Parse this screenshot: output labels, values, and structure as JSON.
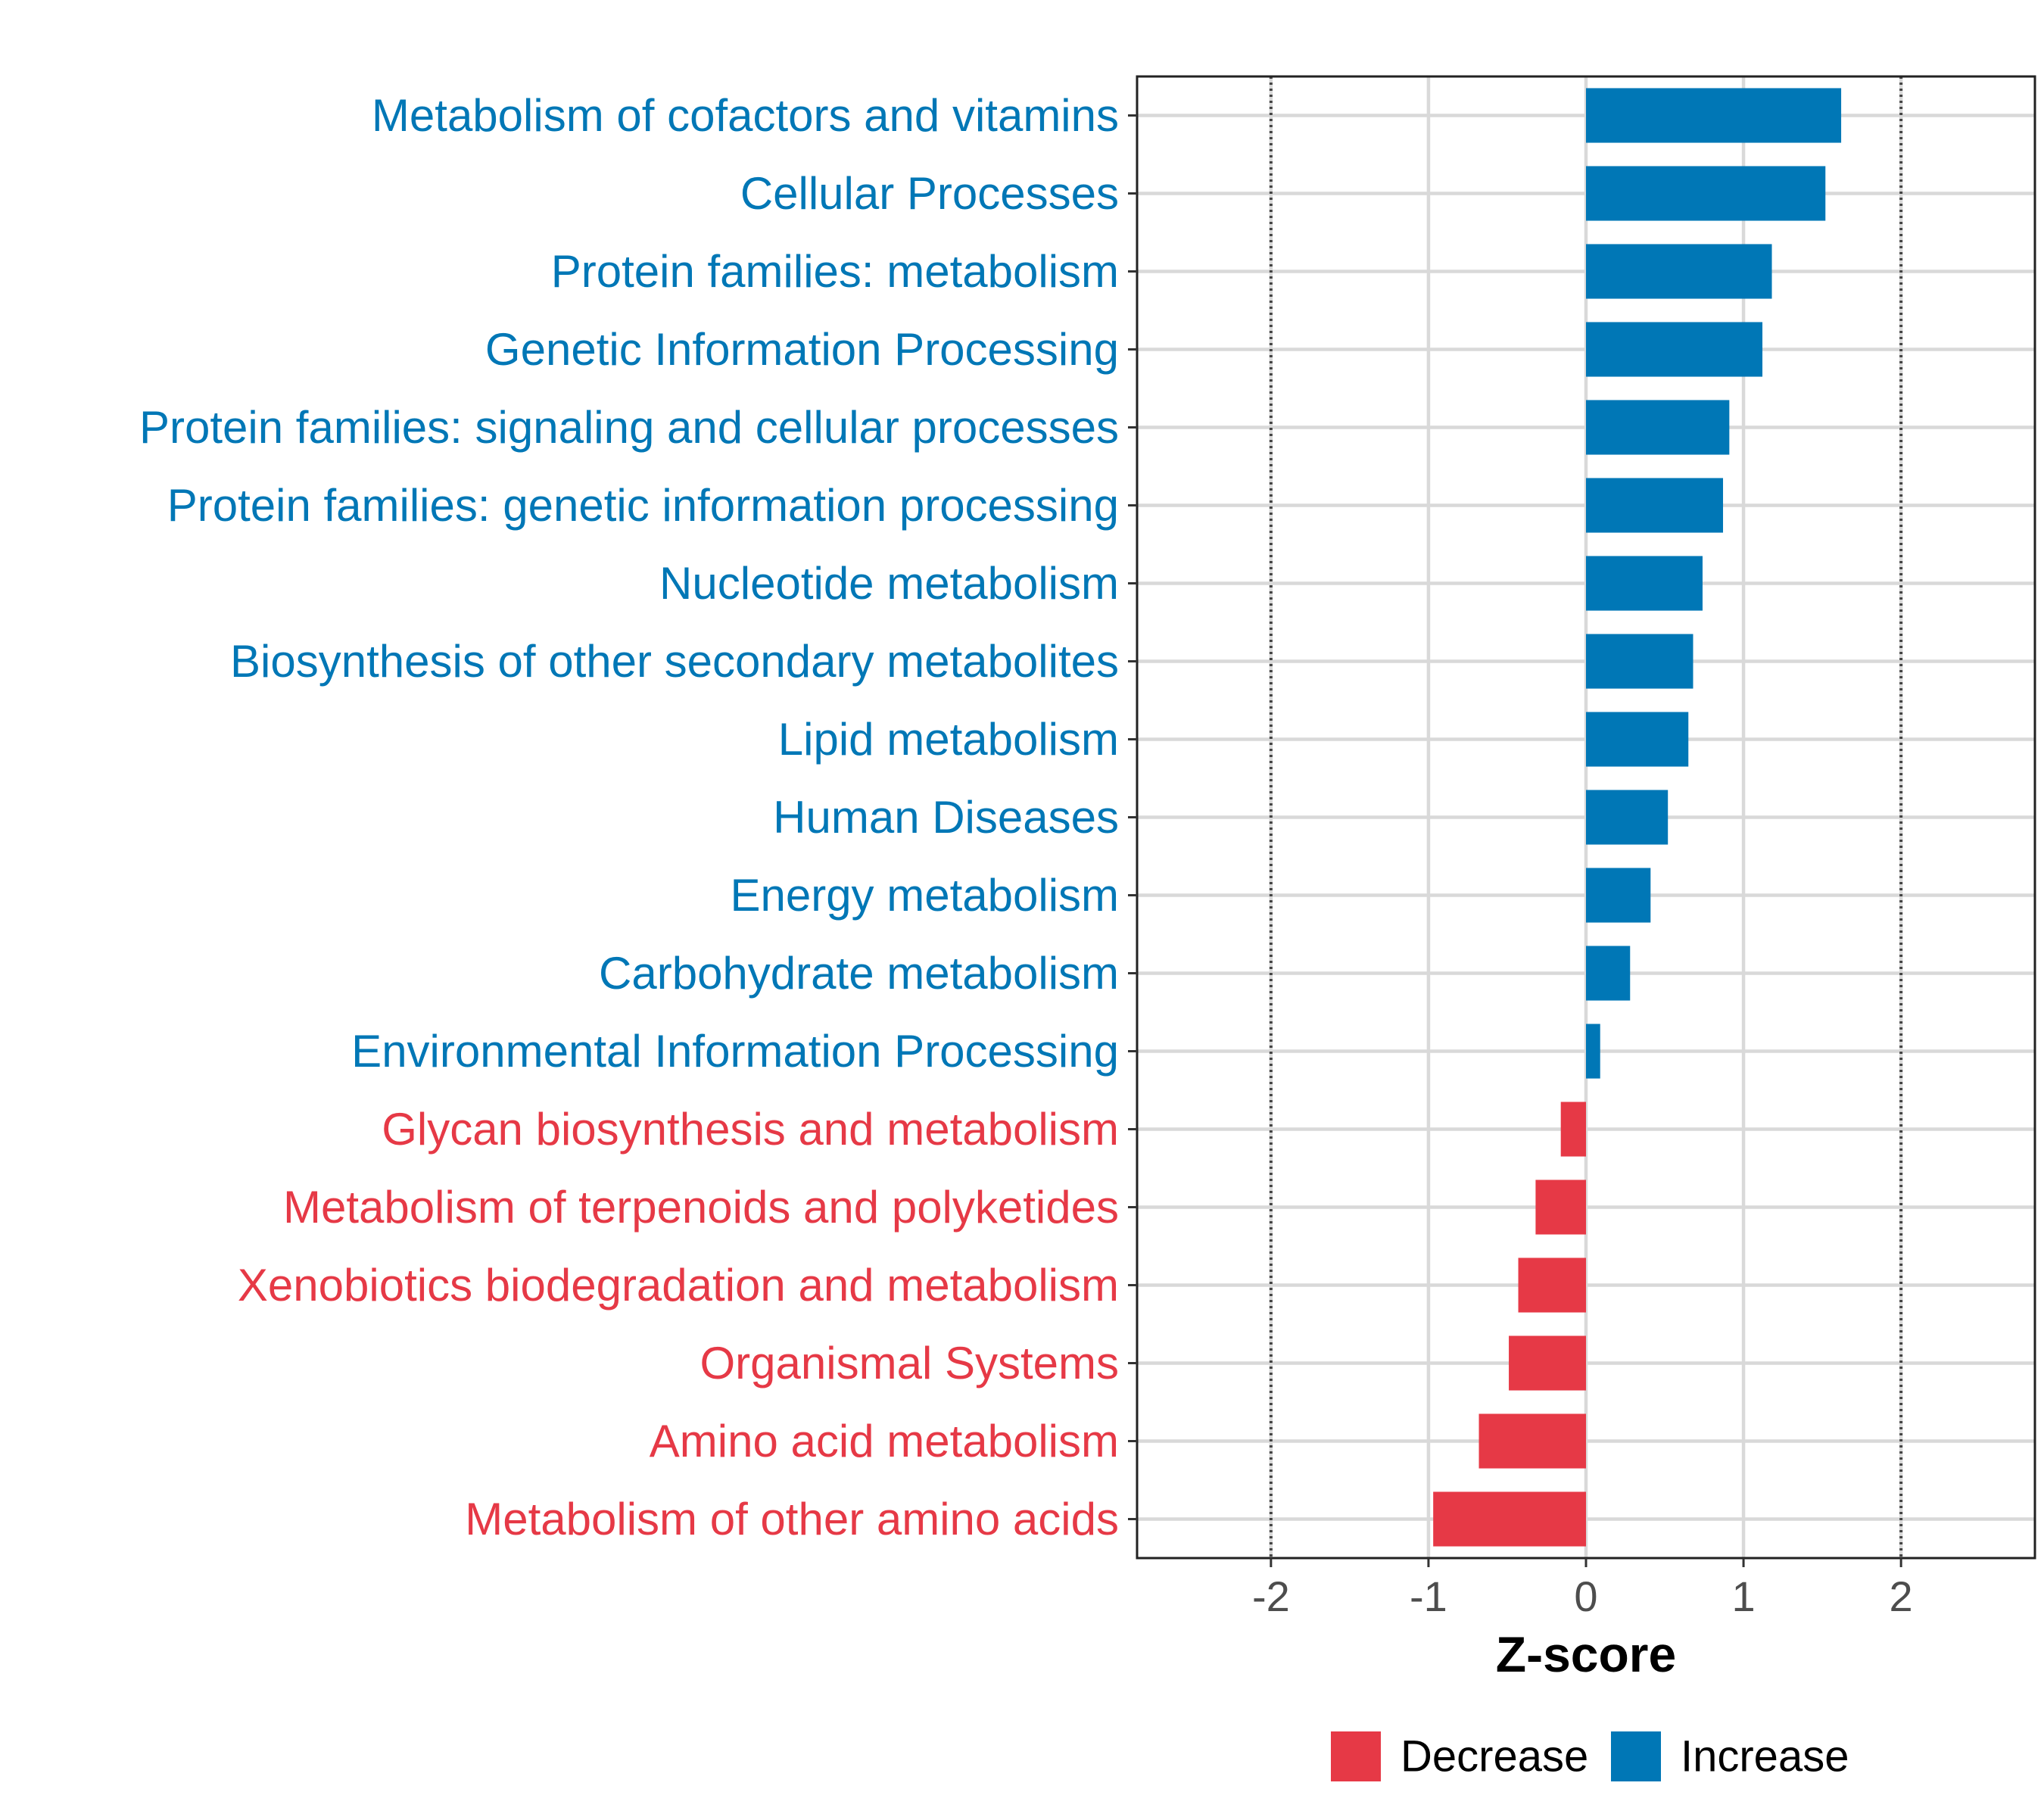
{
  "chart_data": {
    "type": "bar",
    "orientation": "horizontal",
    "title": "",
    "xlabel": "Z-score",
    "ylabel": "",
    "xlim": [
      -2.85,
      2.85
    ],
    "xticks": [
      -2,
      -1,
      0,
      1,
      2
    ],
    "xtick_labels": [
      "-2",
      "-1",
      "0",
      "1",
      "2"
    ],
    "reference_lines": [
      -2,
      2
    ],
    "grid": true,
    "legend_position": "bottom",
    "categories": [
      "Metabolism of cofactors and vitamins",
      "Cellular Processes",
      "Protein families: metabolism",
      "Genetic Information Processing",
      "Protein families: signaling and cellular processes",
      "Protein families: genetic information processing",
      "Nucleotide metabolism",
      "Biosynthesis of other secondary metabolites",
      "Lipid metabolism",
      "Human Diseases",
      "Energy metabolism",
      "Carbohydrate metabolism",
      "Environmental Information Processing",
      "Glycan biosynthesis and metabolism",
      "Metabolism of terpenoids and polyketides",
      "Xenobiotics biodegradation and metabolism",
      "Organismal Systems",
      "Amino acid metabolism",
      "Metabolism of other amino acids"
    ],
    "values": [
      1.62,
      1.52,
      1.18,
      1.12,
      0.91,
      0.87,
      0.74,
      0.68,
      0.65,
      0.52,
      0.41,
      0.28,
      0.09,
      -0.16,
      -0.32,
      -0.43,
      -0.49,
      -0.68,
      -0.97
    ],
    "groups": [
      "Increase",
      "Increase",
      "Increase",
      "Increase",
      "Increase",
      "Increase",
      "Increase",
      "Increase",
      "Increase",
      "Increase",
      "Increase",
      "Increase",
      "Increase",
      "Decrease",
      "Decrease",
      "Decrease",
      "Decrease",
      "Decrease",
      "Decrease"
    ],
    "legend": [
      {
        "label": "Decrease",
        "color": "#E63946"
      },
      {
        "label": "Increase",
        "color": "#0077B6"
      }
    ]
  }
}
